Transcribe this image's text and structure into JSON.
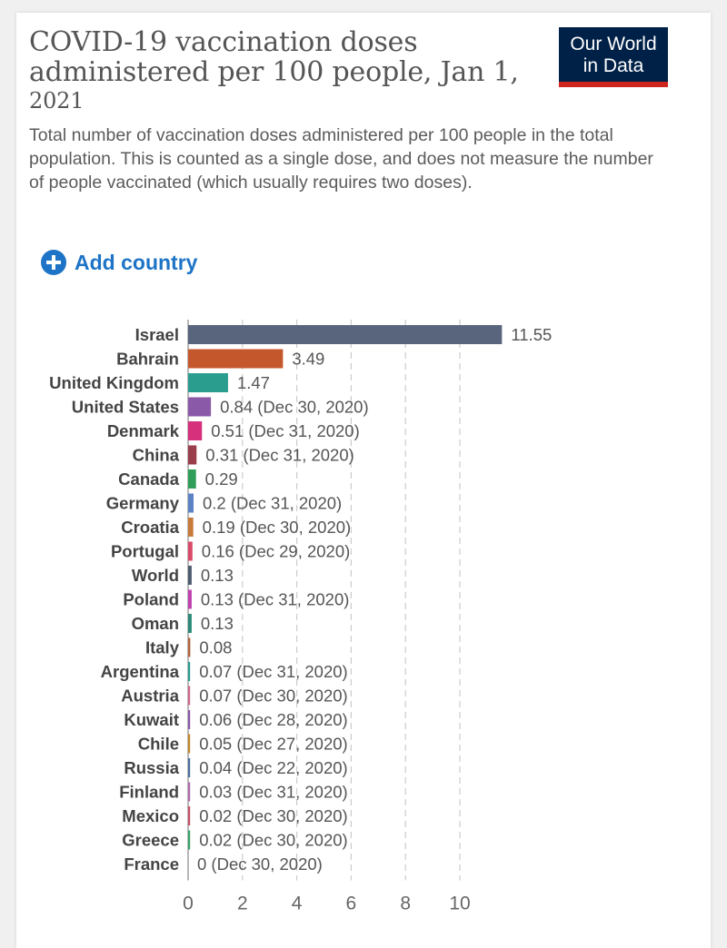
{
  "header": {
    "title": "COVID-19 vaccination doses administered per 100 people, Jan 1,",
    "title_year": "2021",
    "subtitle": "Total number of vaccination doses administered per 100 people in the total population. This is counted as a single dose, and does not measure the number of people vaccinated (which usually requires two doses).",
    "logo_line1": "Our World",
    "logo_line2": "in Data"
  },
  "controls": {
    "add_country_label": "Add country",
    "add_icon": "plus-circle-icon"
  },
  "colors": {
    "logo_bg": "#002147",
    "logo_stripe": "#ce261e",
    "link": "#1d74c6"
  },
  "chart_data": {
    "type": "bar",
    "orientation": "horizontal",
    "title": "COVID-19 vaccination doses administered per 100 people, Jan 1, 2021",
    "xlabel": "",
    "ylabel": "",
    "xlim": [
      0,
      11.55
    ],
    "xticks": [
      0,
      2,
      4,
      6,
      8,
      10
    ],
    "grid": true,
    "categories": [
      "Israel",
      "Bahrain",
      "United Kingdom",
      "United States",
      "Denmark",
      "China",
      "Canada",
      "Germany",
      "Croatia",
      "Portugal",
      "World",
      "Poland",
      "Oman",
      "Italy",
      "Argentina",
      "Austria",
      "Kuwait",
      "Chile",
      "Russia",
      "Finland",
      "Mexico",
      "Greece",
      "France"
    ],
    "values": [
      11.55,
      3.49,
      1.47,
      0.84,
      0.51,
      0.31,
      0.29,
      0.2,
      0.19,
      0.16,
      0.13,
      0.13,
      0.13,
      0.08,
      0.07,
      0.07,
      0.06,
      0.05,
      0.04,
      0.03,
      0.02,
      0.02,
      0
    ],
    "value_labels": [
      "11.55",
      "3.49",
      "1.47",
      "0.84 (Dec 30, 2020)",
      "0.51 (Dec 31, 2020)",
      "0.31 (Dec 31, 2020)",
      "0.29",
      "0.2 (Dec 31, 2020)",
      "0.19 (Dec 30, 2020)",
      "0.16 (Dec 29, 2020)",
      "0.13",
      "0.13 (Dec 31, 2020)",
      "0.13",
      "0.08",
      "0.07 (Dec 31, 2020)",
      "0.07 (Dec 30, 2020)",
      "0.06 (Dec 28, 2020)",
      "0.05 (Dec 27, 2020)",
      "0.04 (Dec 22, 2020)",
      "0.03 (Dec 31, 2020)",
      "0.02 (Dec 30, 2020)",
      "0.02 (Dec 30, 2020)",
      "0 (Dec 30, 2020)"
    ],
    "colors": [
      "#58657c",
      "#c4572c",
      "#2a9d8f",
      "#8a5aa8",
      "#d6307c",
      "#9a3d4a",
      "#2f9e58",
      "#5c82c6",
      "#c77a3a",
      "#d94a6a",
      "#4e5b6e",
      "#c13fae",
      "#2a8a78",
      "#b0633a",
      "#2a9d8f",
      "#d06a8a",
      "#8a5aa8",
      "#c4872c",
      "#4e6e9e",
      "#b06aaa",
      "#c8506a",
      "#3aa36a",
      "#5c82c6"
    ]
  }
}
